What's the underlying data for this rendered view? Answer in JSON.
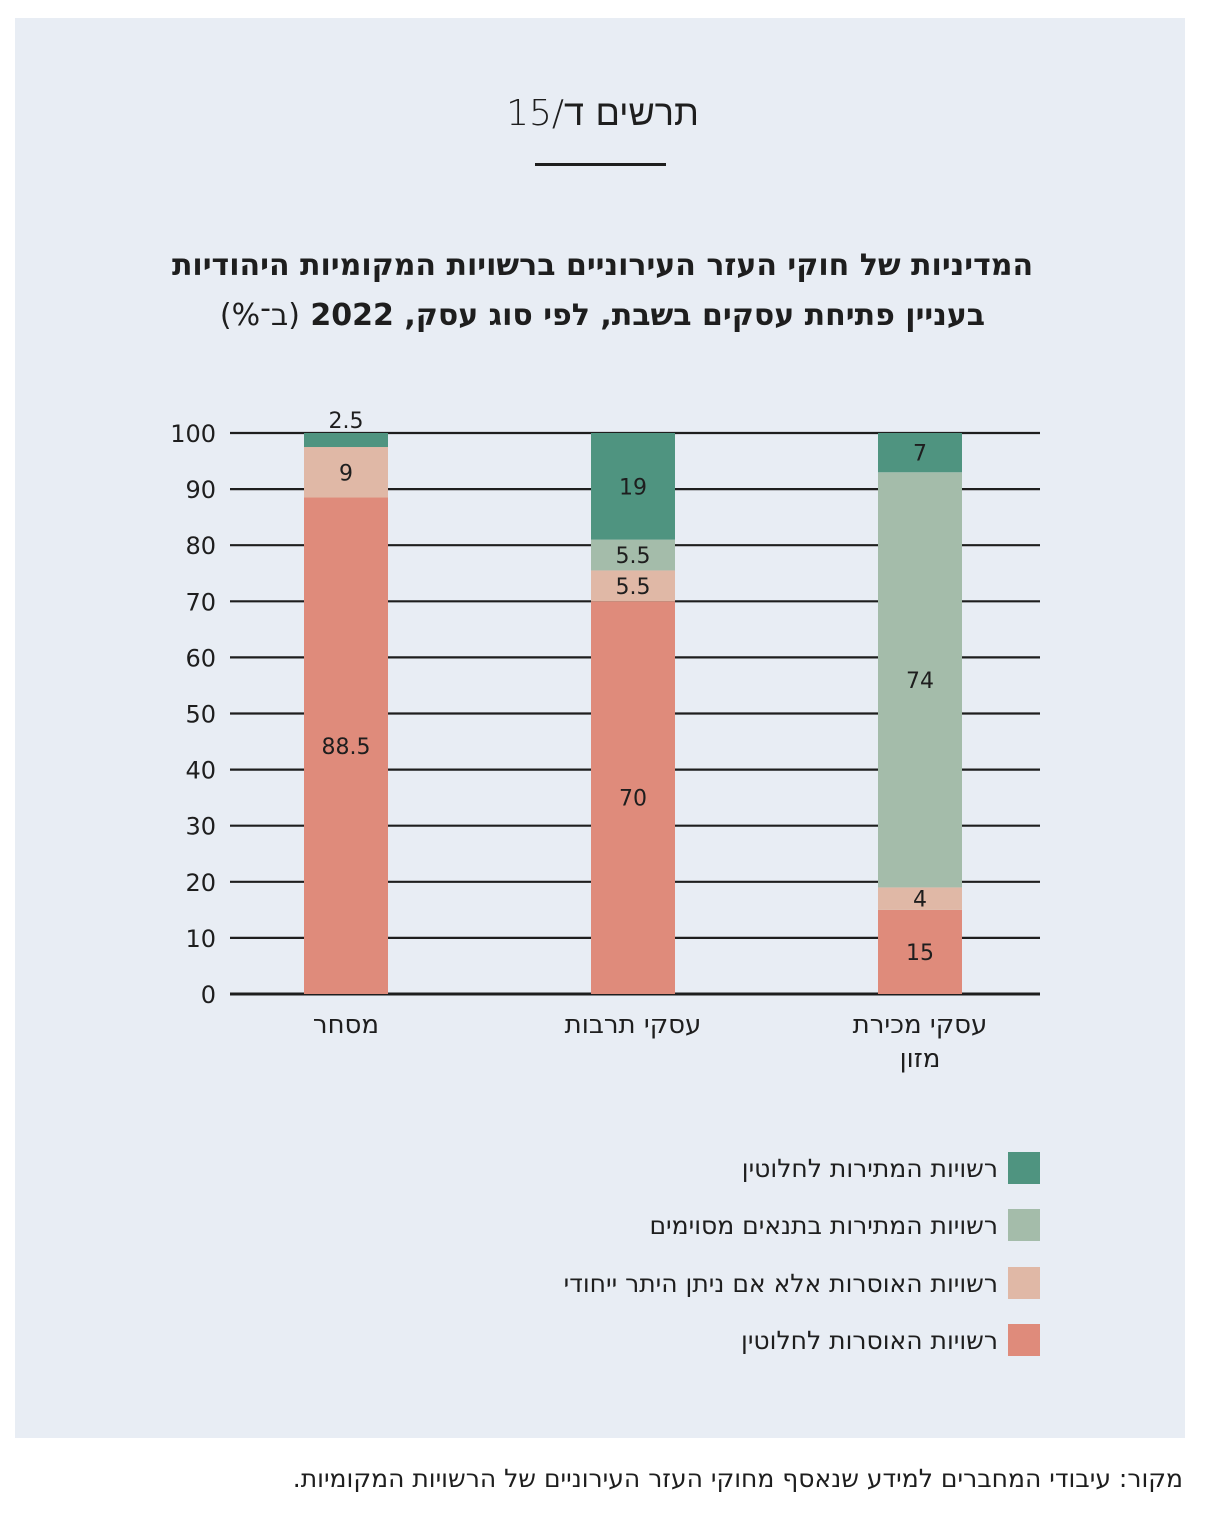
{
  "figure_label": "תרשים ד/15",
  "title_line1": "המדיניות של חוקי העזר העירוניים ברשויות המקומיות היהודיות",
  "title_line2_main": "בעניין פתיחת עסקים בשבת, לפי סוג עסק, 2022",
  "title_line2_unit": "(ב־%)",
  "source": "מקור: עיבודי המחברים למידע שנאסף מחוקי העזר העירוניים של הרשויות המקומיות.",
  "chart_data": {
    "type": "bar",
    "stacked": true,
    "ylim": [
      0,
      100
    ],
    "yticks": [
      0,
      10,
      20,
      30,
      40,
      50,
      60,
      70,
      80,
      90,
      100
    ],
    "grid": true,
    "legend_position": "bottom",
    "categories": [
      {
        "lines": [
          "מסחר"
        ]
      },
      {
        "lines": [
          "עסקי תרבות"
        ]
      },
      {
        "lines": [
          "עסקי מכירת",
          "מזון"
        ]
      }
    ],
    "series": [
      {
        "name": "רשויות האוסרות לחלוטין",
        "color": "#df8b7b",
        "values": [
          88.5,
          70,
          15
        ],
        "labels": [
          "88.5",
          "70",
          "15"
        ]
      },
      {
        "name": "רשויות האוסרות אלא אם ניתן היתר ייחודי",
        "color": "#e0b8a6",
        "values": [
          9,
          5.5,
          4
        ],
        "labels": [
          "9",
          "5.5",
          "4"
        ]
      },
      {
        "name": "רשויות המתירות בתנאים מסוימים",
        "color": "#a4bcaa",
        "values": [
          0,
          5.5,
          74
        ],
        "labels": [
          "",
          "5.5",
          "74"
        ]
      },
      {
        "name": "רשויות המתירות לחלוטין",
        "color": "#4f9480",
        "values": [
          2.5,
          19,
          7
        ],
        "labels": [
          "2.5",
          "19",
          "7"
        ]
      }
    ]
  }
}
